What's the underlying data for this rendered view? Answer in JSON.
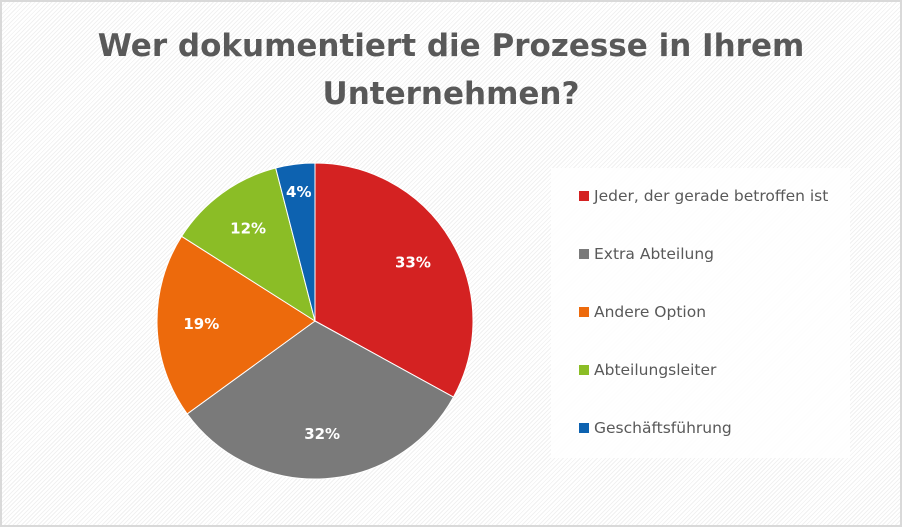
{
  "chart_data": {
    "type": "pie",
    "title": "Wer dokumentiert die Prozesse in Ihrem Unternehmen?",
    "categories": [
      "Jeder, der gerade betroffen ist",
      "Extra Abteilung",
      "Andere Option",
      "Abteilungsleiter",
      "Geschäftsführung"
    ],
    "values": [
      33,
      32,
      19,
      12,
      4
    ],
    "labels": [
      "33%",
      "32%",
      "19%",
      "12%",
      "4%"
    ],
    "colors": [
      "#d42222",
      "#7a7a7a",
      "#ed6a0c",
      "#8bbd26",
      "#0d62b0"
    ],
    "legend_position": "right",
    "start": "top, clockwise"
  }
}
